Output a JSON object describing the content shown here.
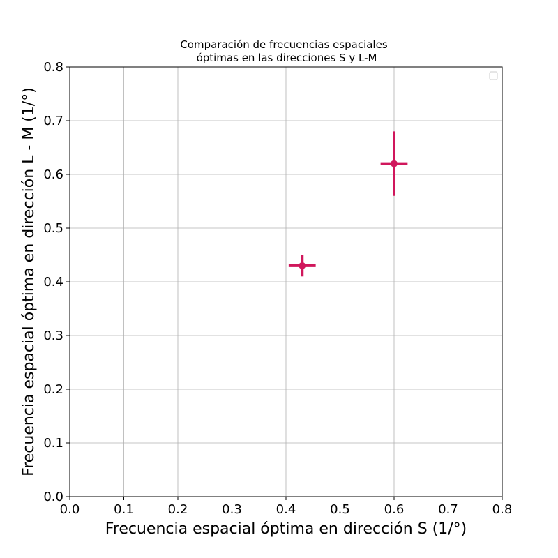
{
  "chart_data": {
    "type": "scatter",
    "title_lines": [
      "Comparación de frecuencias espaciales",
      "óptimas en las direcciones S y L-M"
    ],
    "xlabel": "Frecuencia espacial óptima en dirección S (1/°)",
    "ylabel": "Frecuencia espacial óptima en dirección L - M (1/°)",
    "xlim": [
      0.0,
      0.8
    ],
    "ylim": [
      0.0,
      0.8
    ],
    "xticks": [
      "0.0",
      "0.1",
      "0.2",
      "0.3",
      "0.4",
      "0.5",
      "0.6",
      "0.7",
      "0.8"
    ],
    "yticks": [
      "0.0",
      "0.1",
      "0.2",
      "0.3",
      "0.4",
      "0.5",
      "0.6",
      "0.7",
      "0.8"
    ],
    "grid": true,
    "legend": "top-right",
    "color": "#d0175c",
    "points": [
      {
        "x": 0.43,
        "y": 0.43,
        "xerr": 0.025,
        "yerr": 0.02
      },
      {
        "x": 0.6,
        "y": 0.62,
        "xerr": 0.025,
        "yerr": 0.06
      }
    ]
  }
}
